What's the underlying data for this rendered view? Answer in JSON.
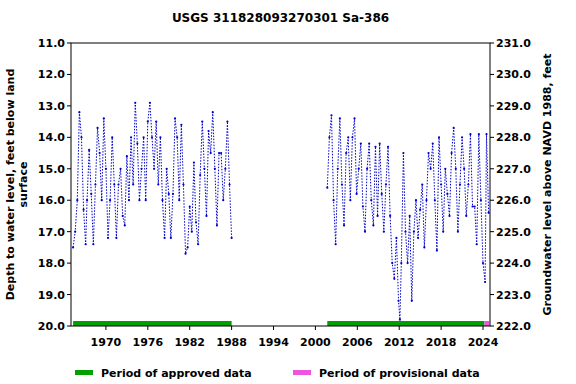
{
  "chart_data": {
    "type": "line",
    "title": "USGS 311828093270301 Sa-386",
    "ylabel": [
      "Depth to water level, feet below land",
      "surface"
    ],
    "y2label": "Groundwater level above NAVD 1988, feet",
    "xlim": [
      1965,
      2025
    ],
    "xticks": [
      1970,
      1976,
      1982,
      1988,
      1994,
      2000,
      2006,
      2012,
      2018,
      2024
    ],
    "ylim": [
      20,
      11
    ],
    "yticks": [
      {
        "value": 11,
        "label": "11.0"
      },
      {
        "value": 12,
        "label": "12.0"
      },
      {
        "value": 13,
        "label": "13.0"
      },
      {
        "value": 14,
        "label": "14.0"
      },
      {
        "value": 15,
        "label": "15.0"
      },
      {
        "value": 16,
        "label": "16.0"
      },
      {
        "value": 17,
        "label": "17.0"
      },
      {
        "value": 18,
        "label": "18.0"
      },
      {
        "value": 19,
        "label": "19.0"
      },
      {
        "value": 20,
        "label": "20.0"
      }
    ],
    "y2lim": [
      222,
      231
    ],
    "y2ticks": [
      {
        "value": 231,
        "label": "231.0"
      },
      {
        "value": 230,
        "label": "230.0"
      },
      {
        "value": 229,
        "label": "229.0"
      },
      {
        "value": 228,
        "label": "228.0"
      },
      {
        "value": 227,
        "label": "227.0"
      },
      {
        "value": 226,
        "label": "226.0"
      },
      {
        "value": 225,
        "label": "225.0"
      },
      {
        "value": 224,
        "label": "224.0"
      },
      {
        "value": 223,
        "label": "223.0"
      },
      {
        "value": 222,
        "label": "222.0"
      }
    ],
    "x": [
      1965.3,
      1965.6,
      1965.9,
      1966.2,
      1966.5,
      1966.8,
      1967.1,
      1967.3,
      1967.6,
      1967.9,
      1968.2,
      1968.5,
      1968.8,
      1969.1,
      1969.4,
      1969.7,
      1970.0,
      1970.3,
      1970.6,
      1970.9,
      1971.2,
      1971.5,
      1971.8,
      1972.1,
      1972.4,
      1972.7,
      1973.0,
      1973.3,
      1973.6,
      1973.9,
      1974.2,
      1974.5,
      1974.8,
      1975.1,
      1975.4,
      1975.7,
      1976.0,
      1976.3,
      1976.6,
      1976.9,
      1977.2,
      1977.5,
      1977.8,
      1978.1,
      1978.4,
      1978.7,
      1979.0,
      1979.3,
      1979.6,
      1979.9,
      1980.2,
      1980.5,
      1980.8,
      1981.1,
      1981.4,
      1981.7,
      1982.0,
      1982.3,
      1982.6,
      1982.9,
      1983.2,
      1983.5,
      1983.8,
      1984.1,
      1984.4,
      1984.7,
      1985.0,
      1985.3,
      1985.6,
      1985.9,
      1986.2,
      1986.5,
      1986.8,
      1987.1,
      1987.4,
      1987.7,
      1988.0,
      1995.0,
      2001.7,
      2002.0,
      2002.3,
      2002.6,
      2002.9,
      2003.2,
      2003.5,
      2003.8,
      2004.1,
      2004.4,
      2004.7,
      2005.0,
      2005.3,
      2005.6,
      2005.9,
      2006.2,
      2006.5,
      2006.8,
      2007.1,
      2007.4,
      2007.7,
      2008.0,
      2008.3,
      2008.6,
      2008.9,
      2009.2,
      2009.5,
      2009.8,
      2010.1,
      2010.4,
      2010.7,
      2011.0,
      2011.3,
      2011.6,
      2011.9,
      2012.1,
      2012.3,
      2012.6,
      2012.9,
      2013.2,
      2013.5,
      2013.8,
      2014.1,
      2014.4,
      2014.7,
      2015.0,
      2015.3,
      2015.6,
      2015.9,
      2016.2,
      2016.5,
      2016.8,
      2017.1,
      2017.4,
      2017.7,
      2018.0,
      2018.3,
      2018.6,
      2018.9,
      2019.2,
      2019.5,
      2019.8,
      2020.1,
      2020.4,
      2020.7,
      2021.0,
      2021.3,
      2021.6,
      2021.9,
      2022.2,
      2022.5,
      2022.8,
      2023.1,
      2023.4,
      2023.7,
      2024.0,
      2024.3,
      2024.5,
      2024.8
    ],
    "series": [
      {
        "color": "#0000cc",
        "line_style": "dotted",
        "marker": "dot",
        "values": [
          17.5,
          17.0,
          16.0,
          13.2,
          14.0,
          16.3,
          17.4,
          16.0,
          14.4,
          15.8,
          17.4,
          15.5,
          13.7,
          14.5,
          16.0,
          13.4,
          15.0,
          17.2,
          16.0,
          14.0,
          15.5,
          17.2,
          15.5,
          15.0,
          16.5,
          16.8,
          14.6,
          16.0,
          14.0,
          15.5,
          12.9,
          14.2,
          16.0,
          15.0,
          14.0,
          16.0,
          13.5,
          12.9,
          14.0,
          15.0,
          13.5,
          15.5,
          14.0,
          16.0,
          17.2,
          15.0,
          15.8,
          17.2,
          15.8,
          13.4,
          14.0,
          16.0,
          13.6,
          15.5,
          17.7,
          17.5,
          16.2,
          17.0,
          14.8,
          16.7,
          17.4,
          15.2,
          13.5,
          15.0,
          16.5,
          13.8,
          14.5,
          13.2,
          15.0,
          16.8,
          14.5,
          14.5,
          16.0,
          15.0,
          13.5,
          15.5,
          17.2,
          null,
          15.6,
          14.0,
          13.3,
          16.0,
          17.4,
          15.0,
          13.4,
          15.5,
          16.8,
          14.5,
          14.0,
          16.0,
          14.0,
          13.4,
          15.8,
          15.0,
          14.2,
          16.2,
          17.0,
          15.0,
          14.2,
          16.0,
          16.8,
          14.3,
          16.5,
          14.2,
          15.8,
          17.0,
          15.5,
          14.3,
          16.5,
          18.0,
          18.5,
          17.2,
          19.2,
          19.8,
          18.0,
          14.5,
          17.0,
          18.0,
          16.5,
          19.2,
          17.0,
          16.0,
          17.2,
          16.3,
          15.5,
          17.5,
          16.0,
          14.5,
          15.0,
          14.2,
          16.0,
          17.6,
          14.0,
          15.5,
          17.0,
          15.0,
          15.8,
          16.5,
          14.5,
          13.7,
          15.0,
          17.0,
          15.5,
          14.0,
          15.0,
          16.5,
          15.5,
          13.9,
          16.2,
          16.2,
          17.4,
          13.9,
          16.0,
          18.0,
          18.6,
          13.9,
          16.4
        ]
      }
    ],
    "periods": [
      {
        "name": "Period of approved data",
        "color": "#00a000",
        "ranges": [
          [
            1965.3,
            1988.0
          ],
          [
            2001.7,
            2024.2
          ]
        ]
      },
      {
        "name": "Period of provisional data",
        "color": "#ee55dd",
        "ranges": [
          [
            2024.2,
            2024.9
          ]
        ]
      }
    ],
    "legend": "bottom"
  }
}
